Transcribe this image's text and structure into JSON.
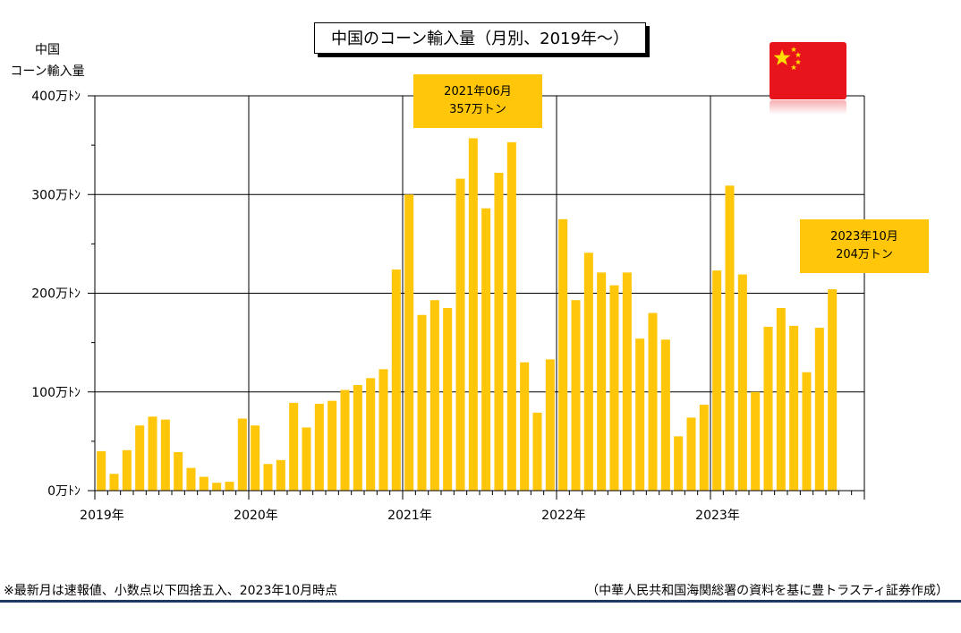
{
  "chart_data": {
    "type": "bar",
    "title": "中国のコーン輸入量（月別、2019年～）",
    "ylabel": "中国\nコーン輸入量",
    "xlabel": "",
    "unit": "万トン",
    "ylim": [
      0,
      400
    ],
    "yticks": [
      {
        "value": 0,
        "label": "0万ﾄﾝ"
      },
      {
        "value": 100,
        "label": "100万ﾄﾝ"
      },
      {
        "value": 200,
        "label": "200万ﾄﾝ"
      },
      {
        "value": 300,
        "label": "300万ﾄﾝ"
      },
      {
        "value": 400,
        "label": "400万ﾄﾝ"
      }
    ],
    "xticks": [
      "2019年",
      "2020年",
      "2021年",
      "2022年",
      "2023年"
    ],
    "grid": true,
    "bar_color": "#ffc60a",
    "start": "2019-01",
    "categories": [
      "2019-01",
      "2019-02",
      "2019-03",
      "2019-04",
      "2019-05",
      "2019-06",
      "2019-07",
      "2019-08",
      "2019-09",
      "2019-10",
      "2019-11",
      "2019-12",
      "2020-01",
      "2020-02",
      "2020-03",
      "2020-04",
      "2020-05",
      "2020-06",
      "2020-07",
      "2020-08",
      "2020-09",
      "2020-10",
      "2020-11",
      "2020-12",
      "2021-01",
      "2021-02",
      "2021-03",
      "2021-04",
      "2021-05",
      "2021-06",
      "2021-07",
      "2021-08",
      "2021-09",
      "2021-10",
      "2021-11",
      "2021-12",
      "2022-01",
      "2022-02",
      "2022-03",
      "2022-04",
      "2022-05",
      "2022-06",
      "2022-07",
      "2022-08",
      "2022-09",
      "2022-10",
      "2022-11",
      "2022-12",
      "2023-01",
      "2023-02",
      "2023-03",
      "2023-04",
      "2023-05",
      "2023-06",
      "2023-07",
      "2023-08",
      "2023-09",
      "2023-10"
    ],
    "values": [
      40,
      17,
      41,
      66,
      75,
      72,
      39,
      23,
      14,
      8,
      9,
      73,
      66,
      27,
      31,
      89,
      64,
      88,
      91,
      102,
      107,
      114,
      123,
      224,
      300,
      178,
      193,
      185,
      316,
      357,
      286,
      322,
      353,
      130,
      79,
      133,
      275,
      193,
      241,
      221,
      208,
      221,
      154,
      180,
      153,
      55,
      74,
      87,
      223,
      309,
      219,
      100,
      166,
      185,
      167,
      120,
      165,
      204
    ],
    "annotations": [
      {
        "line1": "2021年06月",
        "line2": "357万トン"
      },
      {
        "line1": "2023年10月",
        "line2": "204万トン"
      }
    ]
  },
  "footnote_left": "※最新月は速報値、小数点以下四捨五入、2023年10月時点",
  "footnote_right": "（中華人民共和国海関総署の資料を基に豊トラスティ証券作成）",
  "flag_icon": "china-flag-icon",
  "colors": {
    "bar": "#ffc60a",
    "flag_red": "#e8141c",
    "flag_star": "#ffde00",
    "bottom_rule": "#1f3864"
  }
}
